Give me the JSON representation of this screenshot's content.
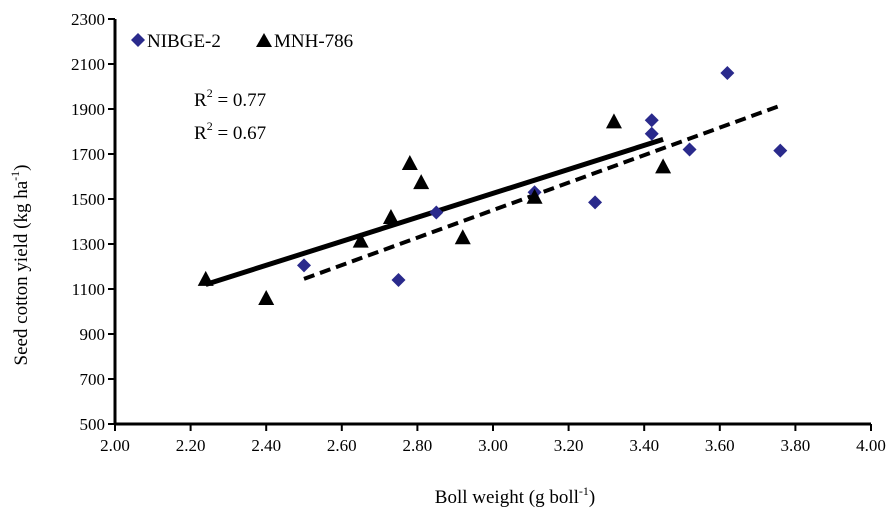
{
  "chart_data": {
    "type": "scatter",
    "title": "",
    "xlabel": "Boll weight (g boll",
    "xlabel_sup": "-1",
    "xlabel_end": ")",
    "ylabel": "Seed cotton yield (kg ha",
    "ylabel_sup": "-1",
    "ylabel_end": ")",
    "xlim": [
      2.0,
      4.0
    ],
    "ylim": [
      500,
      2300
    ],
    "x_ticks": [
      2.0,
      2.2,
      2.4,
      2.6,
      2.8,
      3.0,
      3.2,
      3.4,
      3.6,
      3.8,
      4.0
    ],
    "x_tick_labels": [
      "2.00",
      "2.20",
      "2.40",
      "2.60",
      "2.80",
      "3.00",
      "3.20",
      "3.40",
      "3.60",
      "3.80",
      "4.00"
    ],
    "y_ticks": [
      500,
      700,
      900,
      1100,
      1300,
      1500,
      1700,
      1900,
      2100,
      2300
    ],
    "y_tick_labels": [
      "500",
      "700",
      "900",
      "1100",
      "1300",
      "1500",
      "1700",
      "1900",
      "2100",
      "2300"
    ],
    "grid": false,
    "legend_position": "top-left",
    "annotations": [
      {
        "base": "R",
        "sup": "2",
        "text": " = 0.77"
      },
      {
        "base": "R",
        "sup": "2",
        "text": " = 0.67"
      }
    ],
    "series": [
      {
        "name": "NIBGE-2",
        "marker": "diamond",
        "color": "#2a2a8c",
        "points": [
          [
            2.5,
            1205
          ],
          [
            2.75,
            1140
          ],
          [
            2.85,
            1440
          ],
          [
            3.11,
            1530
          ],
          [
            3.27,
            1485
          ],
          [
            3.42,
            1850
          ],
          [
            3.42,
            1790
          ],
          [
            3.52,
            1720
          ],
          [
            3.62,
            2060
          ],
          [
            3.76,
            1715
          ]
        ],
        "trend": {
          "style": "dashed",
          "x": [
            2.5,
            3.76
          ],
          "y": [
            1145,
            1915
          ]
        }
      },
      {
        "name": "MNH-786",
        "marker": "triangle",
        "color": "#000000",
        "points": [
          [
            2.24,
            1145
          ],
          [
            2.4,
            1060
          ],
          [
            2.65,
            1315
          ],
          [
            2.73,
            1420
          ],
          [
            2.78,
            1660
          ],
          [
            2.81,
            1575
          ],
          [
            2.92,
            1330
          ],
          [
            3.11,
            1510
          ],
          [
            3.32,
            1845
          ],
          [
            3.45,
            1645
          ]
        ],
        "trend": {
          "style": "solid",
          "x": [
            2.24,
            3.45
          ],
          "y": [
            1120,
            1765
          ]
        }
      }
    ]
  }
}
